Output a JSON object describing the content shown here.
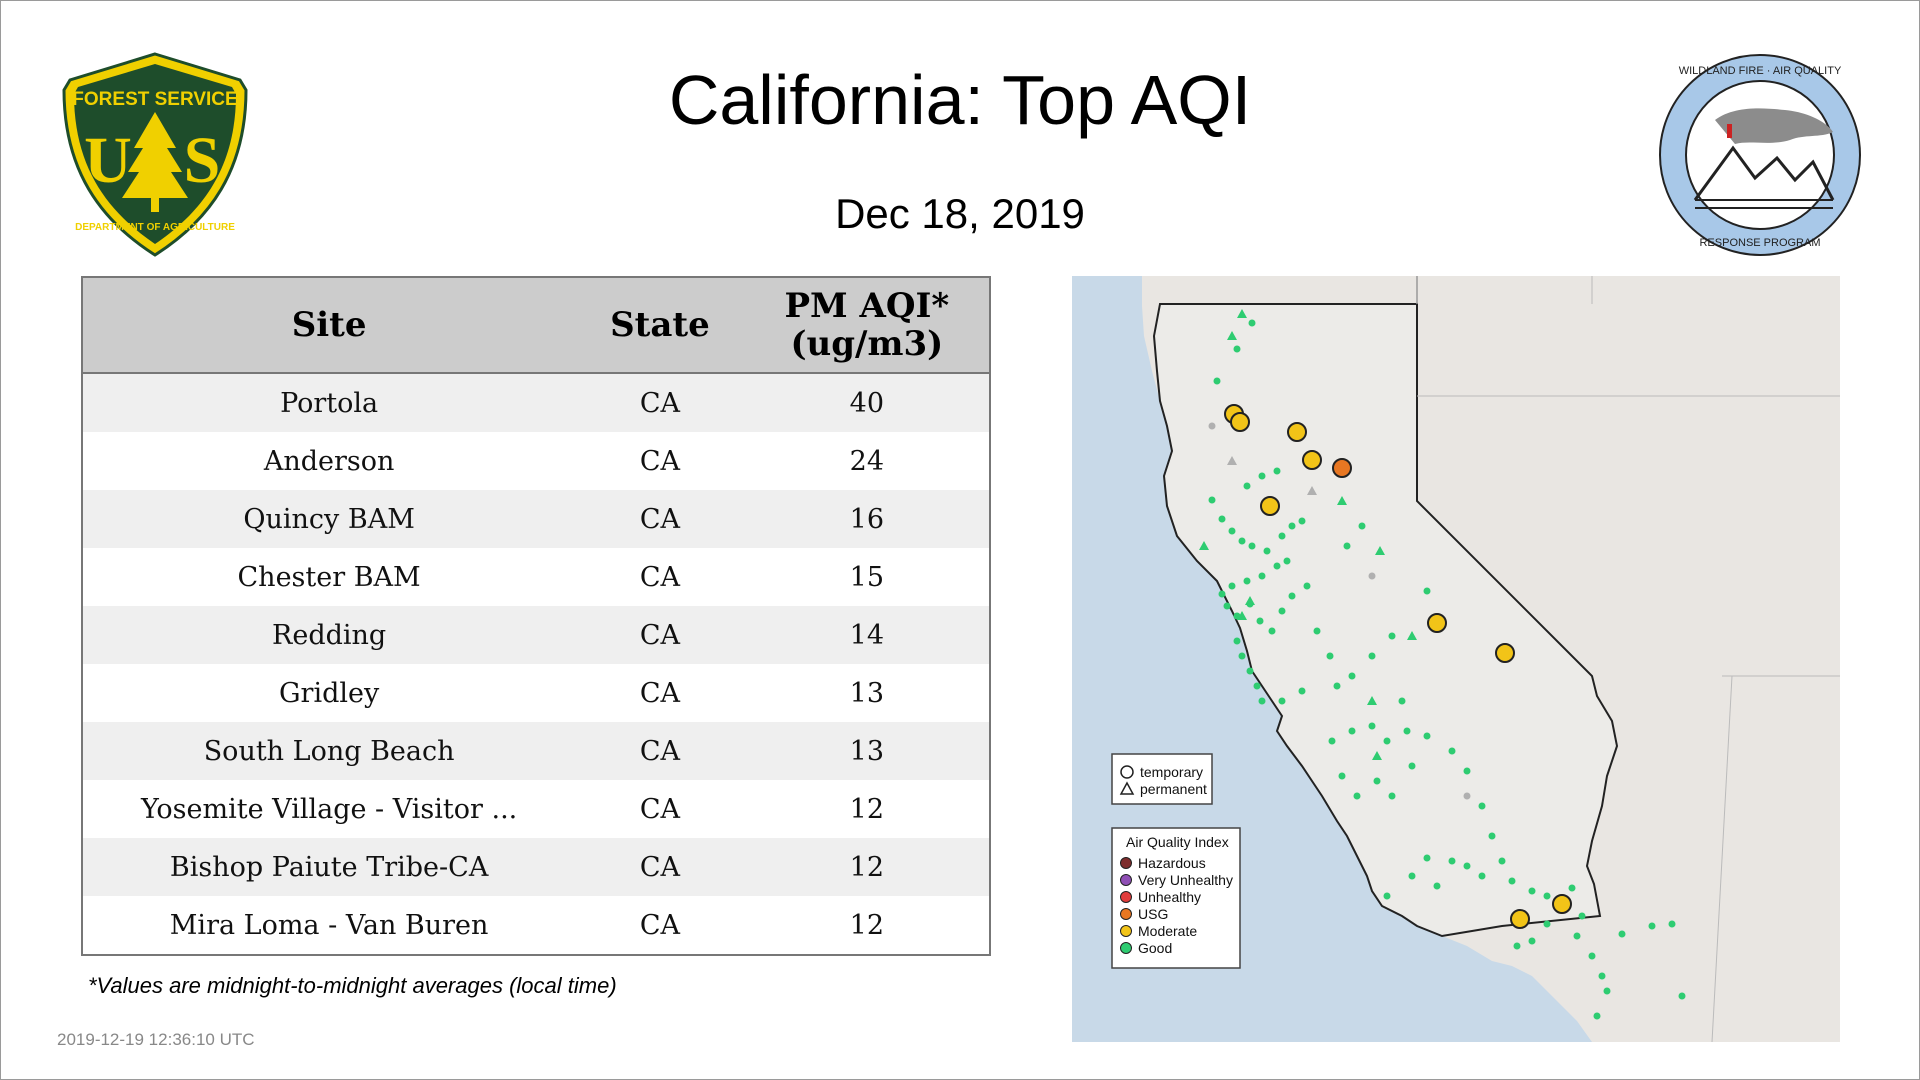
{
  "title": "California: Top AQI",
  "date": "Dec 18, 2019",
  "logos": {
    "forest_service": {
      "top_text": "FOREST SERVICE",
      "letters": "U S",
      "bottom_text": "DEPARTMENT OF AGRICULTURE",
      "colors": {
        "green": "#1e4d2b",
        "gold": "#f0d000"
      }
    },
    "wildland_fire": {
      "text": "WILDLAND FIRE · AIR QUALITY · RESPONSE PROGRAM",
      "color": "#a8c8e8"
    }
  },
  "table": {
    "headers": {
      "site": "Site",
      "state": "State",
      "aqi_line1": "PM AQI*",
      "aqi_line2": "(ug/m3)"
    },
    "rows": [
      {
        "site": "Portola",
        "state": "CA",
        "aqi": "40"
      },
      {
        "site": "Anderson",
        "state": "CA",
        "aqi": "24"
      },
      {
        "site": "Quincy BAM",
        "state": "CA",
        "aqi": "16"
      },
      {
        "site": "Chester BAM",
        "state": "CA",
        "aqi": "15"
      },
      {
        "site": "Redding",
        "state": "CA",
        "aqi": "14"
      },
      {
        "site": "Gridley",
        "state": "CA",
        "aqi": "13"
      },
      {
        "site": "South Long Beach",
        "state": "CA",
        "aqi": "13"
      },
      {
        "site": "Yosemite Village - Visitor ...",
        "state": "CA",
        "aqi": "12"
      },
      {
        "site": "Bishop Paiute Tribe-CA",
        "state": "CA",
        "aqi": "12"
      },
      {
        "site": "Mira Loma - Van Buren",
        "state": "CA",
        "aqi": "12"
      }
    ]
  },
  "footnote": "*Values are midnight-to-midnight averages (local time)",
  "timestamp": "2019-12-19 12:36:10 UTC",
  "map": {
    "legend_shapes": [
      "temporary",
      "permanent"
    ],
    "legend_aqi_title": "Air Quality Index",
    "legend_aqi": [
      {
        "label": "Hazardous",
        "color": "#7e2d2d"
      },
      {
        "label": "Very Unhealthy",
        "color": "#8f4fb5"
      },
      {
        "label": "Unhealthy",
        "color": "#e03c3c"
      },
      {
        "label": "USG",
        "color": "#e87722"
      },
      {
        "label": "Moderate",
        "color": "#f2c418"
      },
      {
        "label": "Good",
        "color": "#2ecc71"
      }
    ],
    "colors": {
      "ocean": "#c8d9e8",
      "land": "#e9e6e2",
      "california": "#ecebe8",
      "border": "#222222"
    }
  }
}
